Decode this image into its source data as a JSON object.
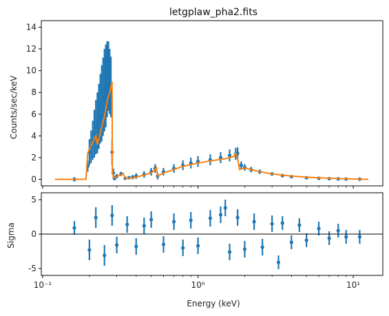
{
  "chart_data": [
    {
      "type": "line",
      "title": "letgplaw_pha2.fits",
      "xlabel": "",
      "ylabel": "Counts/sec/keV",
      "x_scale": "log",
      "xlim": [
        0.098,
        15.5
      ],
      "ylim": [
        -0.6,
        14.6
      ],
      "yticks": [
        0,
        2,
        4,
        6,
        8,
        10,
        12,
        14
      ],
      "grid": false,
      "colors": {
        "data": "#1f77b4",
        "model": "#ff7f0e"
      },
      "series": [
        {
          "role": "data",
          "style": "points-with-errorbars",
          "x": [
            0.16,
            0.195,
            0.2,
            0.205,
            0.21,
            0.215,
            0.22,
            0.225,
            0.23,
            0.235,
            0.24,
            0.245,
            0.25,
            0.255,
            0.26,
            0.265,
            0.27,
            0.275,
            0.28,
            0.285,
            0.29,
            0.3,
            0.32,
            0.34,
            0.36,
            0.38,
            0.4,
            0.45,
            0.5,
            0.53,
            0.55,
            0.6,
            0.7,
            0.8,
            0.9,
            1.0,
            1.2,
            1.4,
            1.6,
            1.75,
            1.8,
            1.9,
            2.0,
            2.2,
            2.5,
            3.0,
            3.5,
            4.0,
            5.0,
            6.0,
            7.0,
            8.0,
            9.0,
            11.0
          ],
          "y": [
            0.0,
            1.2,
            2.5,
            3.0,
            3.6,
            4.2,
            4.8,
            5.2,
            5.8,
            6.5,
            7.0,
            7.6,
            8.2,
            8.6,
            9.2,
            9.5,
            9.0,
            8.5,
            2.5,
            0.6,
            0.1,
            0.3,
            0.5,
            0.1,
            0.15,
            0.2,
            0.3,
            0.45,
            0.7,
            1.0,
            0.3,
            0.7,
            1.0,
            1.3,
            1.5,
            1.65,
            1.8,
            2.0,
            2.2,
            2.35,
            2.4,
            1.3,
            1.1,
            0.9,
            0.7,
            0.5,
            0.35,
            0.25,
            0.15,
            0.1,
            0.07,
            0.05,
            0.03,
            0.02
          ],
          "yerr": [
            0.2,
            0.5,
            1.2,
            1.5,
            1.8,
            2.2,
            2.5,
            2.8,
            3.0,
            3.2,
            3.5,
            3.6,
            3.8,
            3.8,
            3.5,
            3.2,
            3.0,
            2.8,
            1.2,
            0.4,
            0.2,
            0.2,
            0.2,
            0.15,
            0.15,
            0.2,
            0.25,
            0.3,
            0.35,
            0.4,
            0.3,
            0.35,
            0.4,
            0.45,
            0.5,
            0.5,
            0.5,
            0.5,
            0.55,
            0.55,
            0.55,
            0.35,
            0.3,
            0.25,
            0.2,
            0.15,
            0.12,
            0.1,
            0.08,
            0.06,
            0.05,
            0.04,
            0.03,
            0.03
          ]
        },
        {
          "role": "model",
          "style": "step-line",
          "x": [
            0.12,
            0.16,
            0.19,
            0.195,
            0.2,
            0.21,
            0.22,
            0.225,
            0.23,
            0.24,
            0.25,
            0.26,
            0.27,
            0.28,
            0.281,
            0.285,
            0.29,
            0.3,
            0.32,
            0.33,
            0.34,
            0.36,
            0.4,
            0.45,
            0.5,
            0.53,
            0.54,
            0.55,
            0.6,
            0.7,
            0.8,
            1.0,
            1.2,
            1.5,
            1.7,
            1.75,
            1.8,
            1.85,
            2.0,
            2.5,
            3.0,
            4.0,
            5.0,
            7.0,
            9.0,
            12.5
          ],
          "y": [
            0.0,
            0.0,
            0.0,
            2.4,
            2.8,
            3.4,
            4.0,
            3.2,
            3.8,
            4.8,
            5.8,
            7.2,
            8.0,
            9.0,
            0.8,
            0.2,
            0.15,
            0.3,
            0.4,
            0.55,
            0.1,
            0.1,
            0.2,
            0.4,
            0.6,
            0.9,
            1.1,
            0.3,
            0.6,
            0.9,
            1.2,
            1.5,
            1.7,
            1.9,
            2.1,
            2.4,
            1.9,
            0.9,
            1.05,
            0.7,
            0.5,
            0.3,
            0.2,
            0.1,
            0.05,
            0.0
          ]
        }
      ]
    },
    {
      "type": "scatter",
      "title": "",
      "xlabel": "Energy (keV)",
      "ylabel": "Sigma",
      "x_scale": "log",
      "xlim": [
        0.098,
        15.5
      ],
      "ylim": [
        -6,
        6
      ],
      "yticks": [
        -5,
        0,
        5
      ],
      "xtick_labels": [
        "10⁻¹",
        "10⁰",
        "10¹"
      ],
      "xtick_values": [
        0.1,
        1,
        10
      ],
      "reference_line": 0,
      "grid": false,
      "series": [
        {
          "role": "residuals",
          "style": "points-with-errorbars",
          "x": [
            0.16,
            0.2,
            0.22,
            0.25,
            0.28,
            0.3,
            0.35,
            0.4,
            0.45,
            0.5,
            0.6,
            0.7,
            0.8,
            0.9,
            1.0,
            1.2,
            1.4,
            1.5,
            1.6,
            1.8,
            2.0,
            2.3,
            2.6,
            3.0,
            3.3,
            3.5,
            4.0,
            4.5,
            5.0,
            6.0,
            7.0,
            8.0,
            9.0,
            11.0
          ],
          "y": [
            0.9,
            -2.3,
            2.4,
            -3.1,
            2.7,
            -1.6,
            1.4,
            -1.8,
            1.2,
            2.1,
            -1.5,
            1.8,
            -2.0,
            2.0,
            -1.7,
            2.3,
            2.8,
            3.8,
            -2.6,
            2.4,
            -2.2,
            1.8,
            -1.9,
            1.5,
            -4.1,
            1.6,
            -1.2,
            1.3,
            -0.9,
            0.8,
            -0.6,
            0.5,
            -0.4,
            -0.4
          ],
          "yerr": [
            1.0,
            1.5,
            1.5,
            1.5,
            1.5,
            1.2,
            1.2,
            1.2,
            1.2,
            1.2,
            1.2,
            1.2,
            1.2,
            1.2,
            1.2,
            1.2,
            1.2,
            1.2,
            1.2,
            1.2,
            1.2,
            1.2,
            1.2,
            1.2,
            1.0,
            1.0,
            1.0,
            1.0,
            1.0,
            1.0,
            1.0,
            1.0,
            1.0,
            1.0
          ]
        }
      ]
    }
  ]
}
